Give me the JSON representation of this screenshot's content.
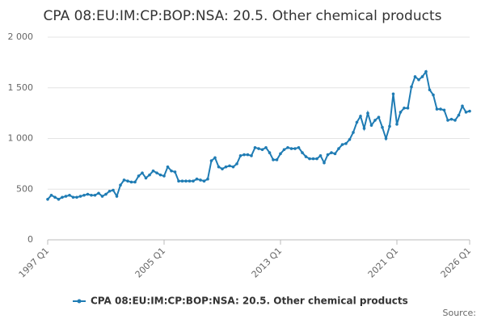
{
  "chart_data": {
    "type": "line",
    "title": "CPA 08:EU:IM:CP:BOP:NSA: 20.5. Other chemical products",
    "source": "Source:",
    "categories": [
      "1997 Q1",
      null,
      null,
      null,
      null,
      null,
      null,
      null,
      null,
      null,
      null,
      null,
      null,
      null,
      null,
      null,
      null,
      null,
      null,
      null,
      null,
      null,
      null,
      null,
      null,
      null,
      null,
      null,
      null,
      null,
      null,
      null,
      "2005 Q1",
      null,
      null,
      null,
      null,
      null,
      null,
      null,
      null,
      null,
      null,
      null,
      null,
      null,
      null,
      null,
      null,
      null,
      null,
      null,
      null,
      null,
      null,
      null,
      null,
      null,
      null,
      null,
      null,
      null,
      null,
      null,
      "2013 Q1",
      null,
      null,
      null,
      null,
      null,
      null,
      null,
      null,
      null,
      null,
      null,
      null,
      null,
      null,
      null,
      null,
      null,
      null,
      null,
      null,
      null,
      null,
      null,
      null,
      null,
      null,
      null,
      null,
      null,
      null,
      null,
      "2021 Q1",
      null,
      null,
      null,
      null,
      null,
      null,
      null,
      null,
      null,
      null,
      null,
      null,
      null,
      null,
      null,
      null,
      null,
      null,
      null,
      "2026 Q1"
    ],
    "series": [
      {
        "name": "CPA 08:EU:IM:CP:BOP:NSA: 20.5. Other chemical products",
        "color": "#1f7cb4",
        "values": [
          400,
          440,
          420,
          400,
          420,
          430,
          440,
          420,
          420,
          430,
          440,
          450,
          440,
          440,
          460,
          430,
          450,
          480,
          490,
          430,
          540,
          590,
          580,
          570,
          570,
          630,
          660,
          610,
          640,
          680,
          660,
          640,
          630,
          720,
          680,
          670,
          580,
          580,
          580,
          580,
          580,
          600,
          590,
          580,
          600,
          780,
          810,
          720,
          700,
          720,
          730,
          720,
          750,
          830,
          840,
          840,
          830,
          910,
          900,
          890,
          910,
          860,
          790,
          790,
          850,
          890,
          910,
          900,
          900,
          910,
          860,
          820,
          800,
          800,
          800,
          830,
          760,
          840,
          860,
          850,
          900,
          940,
          950,
          990,
          1060,
          1160,
          1220,
          1100,
          1250,
          1130,
          1180,
          1210,
          1110,
          1000,
          1120,
          1440,
          1140,
          1260,
          1300,
          1300,
          1510,
          1610,
          1580,
          1610,
          1660,
          1480,
          1430,
          1290,
          1290,
          1280,
          1180,
          1190,
          1180,
          1230,
          1320,
          1260,
          1270
        ]
      }
    ],
    "ylim": [
      0,
      2000
    ],
    "yticks": [
      0,
      500,
      {
        "value": 1000,
        "label": "1 000"
      },
      {
        "value": 1500,
        "label": "1 500"
      },
      {
        "value": 2000,
        "label": "2 000"
      }
    ],
    "grid": true,
    "legend": "bottom"
  }
}
